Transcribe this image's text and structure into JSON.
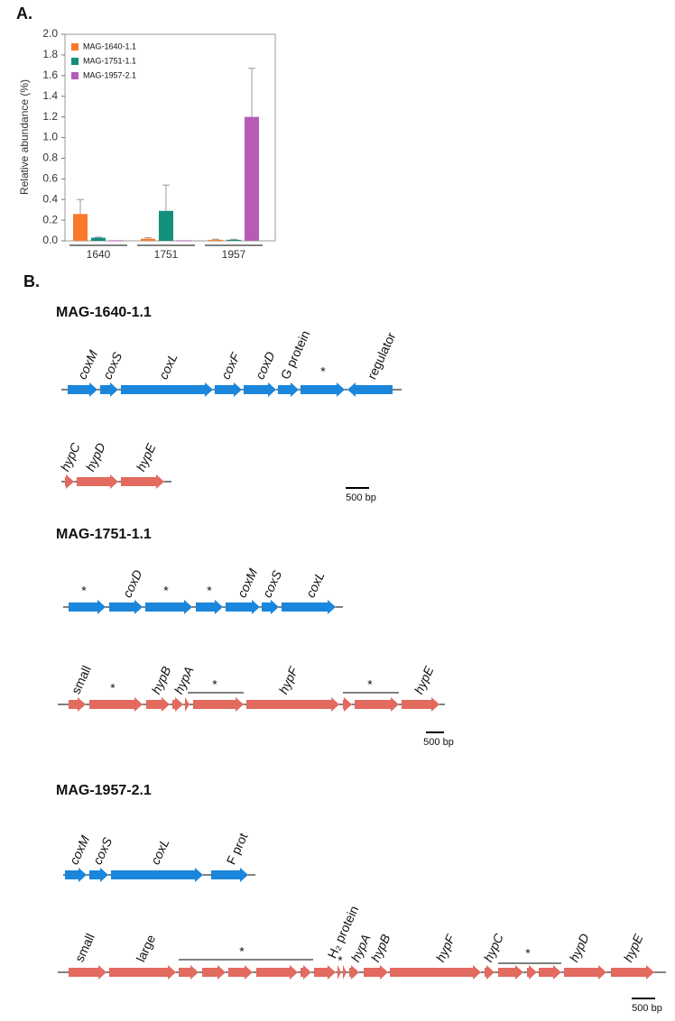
{
  "chart_data": {
    "type": "bar",
    "panel": "A.",
    "ylabel": "Relative abundance (%)",
    "categories": [
      "1640",
      "1751",
      "1957"
    ],
    "series": [
      {
        "name": "MAG-1640-1.1",
        "color": "#f97a2b",
        "values": [
          0.26,
          0.02,
          0.01
        ],
        "errors": [
          0.14,
          0.01,
          0.005
        ]
      },
      {
        "name": "MAG-1751-1.1",
        "color": "#13907c",
        "values": [
          0.03,
          0.29,
          0.01
        ],
        "errors": [
          0.005,
          0.25,
          0.005
        ]
      },
      {
        "name": "MAG-1957-2.1",
        "color": "#b65cb5",
        "values": [
          0.005,
          0.005,
          1.2
        ],
        "errors": [
          0,
          0,
          0.47
        ]
      }
    ],
    "ylim": [
      0,
      2
    ],
    "yticks": [
      {
        "value": 0,
        "label": "0.0"
      },
      0.2,
      0.4,
      0.6,
      0.8,
      {
        "value": 1,
        "label": "1.0"
      },
      1.2,
      1.4,
      1.6,
      1.8,
      {
        "value": 2,
        "label": "2.0"
      }
    ],
    "legend": "upper left",
    "grid": false
  },
  "panel_b": {
    "label": "B.",
    "mags": [
      {
        "title": "MAG-1640-1.1",
        "genes": [
          "coxM",
          "coxS",
          "coxL",
          "coxF",
          "coxD",
          "G protein",
          "*",
          "regulator",
          "hypC",
          "hypD",
          "hypE"
        ],
        "scale": "500 bp"
      },
      {
        "title": "MAG-1751-1.1",
        "genes": [
          "*",
          "coxD",
          "*",
          "*",
          "coxM",
          "coxS",
          "coxL",
          "small",
          "*",
          "hypB",
          "hypA",
          "*",
          "hypF",
          "*",
          "hypE"
        ],
        "scale": "500 bp"
      },
      {
        "title": "MAG-1957-2.1",
        "genes": [
          "coxM",
          "coxS",
          "coxL",
          "F prot",
          "small",
          "large",
          "*",
          "H₂ protein",
          "*",
          "hypA",
          "hypB",
          "hypF",
          "hypC",
          "*",
          "hypD",
          "hypE"
        ],
        "scale": "500 bp"
      }
    ]
  }
}
